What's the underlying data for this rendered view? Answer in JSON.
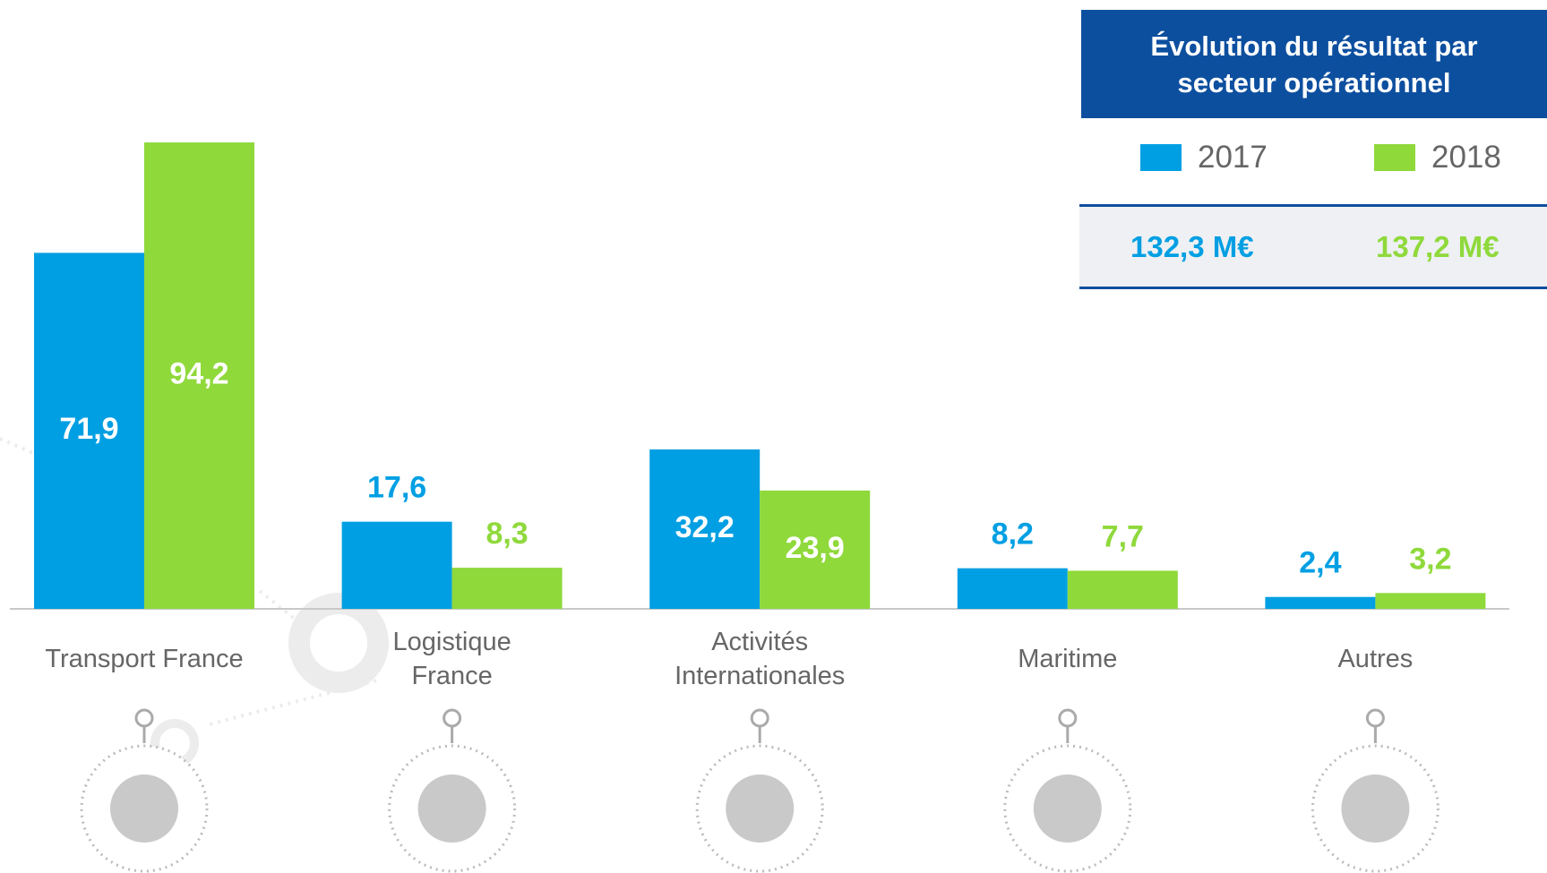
{
  "chart_data": {
    "type": "bar",
    "title": "Évolution du résultat par secteur opérationnel",
    "categories": [
      "Transport France",
      "Logistique France",
      "Activités Internationales",
      "Maritime",
      "Autres"
    ],
    "series": [
      {
        "name": "2017",
        "color": "#009fe3",
        "values": [
          71.9,
          17.6,
          32.2,
          8.2,
          2.4
        ],
        "value_labels": [
          "71,9",
          "17,6",
          "32,2",
          "8,2",
          "2,4"
        ],
        "total": "132,3 M€"
      },
      {
        "name": "2018",
        "color": "#8fd93b",
        "values": [
          94.2,
          8.3,
          23.9,
          7.7,
          3.2
        ],
        "value_labels": [
          "94,2",
          "8,3",
          "23,9",
          "7,7",
          "3,2"
        ],
        "total": "137,2 M€"
      }
    ],
    "ylim": [
      0,
      100
    ]
  }
}
